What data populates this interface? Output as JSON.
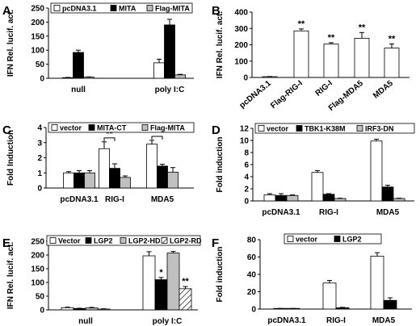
{
  "chart_data": [
    {
      "panel": "A",
      "type": "bar",
      "ylabel": "IFN Rel. lucif. act.",
      "ylim": [
        0,
        250
      ],
      "yticks": [
        0,
        50,
        100,
        150,
        200,
        250
      ],
      "categories": [
        "null",
        "poly I:C"
      ],
      "series": [
        {
          "name": "pcDNA3.1",
          "fill": "#ffffff",
          "values": [
            2,
            55
          ],
          "errors": [
            1,
            13
          ]
        },
        {
          "name": "MITA",
          "fill": "#000000",
          "values": [
            92,
            190
          ],
          "errors": [
            8,
            20
          ]
        },
        {
          "name": "Flag-MITA",
          "fill": "#c0c0c0",
          "values": [
            4,
            12
          ],
          "errors": [
            1,
            2
          ]
        }
      ],
      "annotations": []
    },
    {
      "panel": "B",
      "type": "bar",
      "ylabel": "IFN Rel. lucif. act.",
      "ylim": [
        0,
        400
      ],
      "yticks": [
        0,
        100,
        200,
        300,
        400
      ],
      "categories": [
        "pcDNA3.1",
        "Flag-RIG-I",
        "RIG-I",
        "Flag-MDA5",
        "MDA5"
      ],
      "series": [
        {
          "name": "",
          "fill": "#ffffff",
          "values": [
            5,
            285,
            205,
            240,
            180
          ],
          "errors": [
            1,
            12,
            8,
            35,
            25
          ]
        }
      ],
      "annotations": [
        {
          "category": 1,
          "text": "**"
        },
        {
          "category": 2,
          "text": "**"
        },
        {
          "category": 3,
          "text": "**"
        },
        {
          "category": 4,
          "text": "**"
        }
      ]
    },
    {
      "panel": "C",
      "type": "bar",
      "ylabel": "Fold Induction",
      "ylim": [
        0,
        4
      ],
      "yticks": [
        0,
        1,
        2,
        3,
        4
      ],
      "categories": [
        "pcDNA3.1",
        "RIG-I",
        "MDA5"
      ],
      "series": [
        {
          "name": "vector",
          "fill": "#ffffff",
          "values": [
            1.0,
            2.6,
            2.9
          ],
          "errors": [
            0.08,
            0.45,
            0.25
          ]
        },
        {
          "name": "MITA-CT",
          "fill": "#000000",
          "values": [
            1.0,
            1.3,
            1.45
          ],
          "errors": [
            0.15,
            0.3,
            0.12
          ]
        },
        {
          "name": "Flag-MITA",
          "fill": "#c0c0c0",
          "values": [
            1.0,
            0.7,
            1.05
          ],
          "errors": [
            0.15,
            0.1,
            0.3
          ]
        }
      ],
      "annotations": [
        {
          "category": 1,
          "text": "**",
          "bracket": true
        },
        {
          "category": 2,
          "text": "**",
          "bracket": true
        }
      ]
    },
    {
      "panel": "D",
      "type": "bar",
      "ylabel": "Fold induction",
      "ylim": [
        0,
        12
      ],
      "yticks": [
        0,
        2,
        4,
        6,
        8,
        10,
        12
      ],
      "categories": [
        "pcDNA3.1",
        "RIG-I",
        "MDA5"
      ],
      "series": [
        {
          "name": "vector",
          "fill": "#ffffff",
          "values": [
            1.0,
            4.7,
            9.9
          ],
          "errors": [
            0.2,
            0.3,
            0.3
          ]
        },
        {
          "name": "TBK1-K38M",
          "fill": "#000000",
          "values": [
            0.9,
            1.1,
            2.3
          ],
          "errors": [
            0.3,
            0.1,
            0.3
          ]
        },
        {
          "name": "IRF3-DN",
          "fill": "#c0c0c0",
          "values": [
            0.9,
            0.4,
            0.4
          ],
          "errors": [
            0.1,
            0.05,
            0.05
          ]
        }
      ],
      "annotations": []
    },
    {
      "panel": "E",
      "type": "bar",
      "ylabel": "IFN Rel. lucif. act.",
      "ylim": [
        0,
        250
      ],
      "yticks": [
        0,
        50,
        100,
        150,
        200,
        250
      ],
      "categories": [
        "null",
        "poly I:C"
      ],
      "series": [
        {
          "name": "Vector",
          "fill": "#ffffff",
          "values": [
            8,
            197
          ],
          "errors": [
            2,
            15
          ]
        },
        {
          "name": "LGP2",
          "fill": "#000000",
          "values": [
            5,
            110
          ],
          "errors": [
            1,
            8
          ]
        },
        {
          "name": "LGP2-HD",
          "fill": "#c0c0c0",
          "values": [
            7,
            207
          ],
          "errors": [
            2,
            6
          ]
        },
        {
          "name": "LGP2-RD",
          "fill": "hatch",
          "values": [
            3,
            77
          ],
          "errors": [
            1,
            8
          ]
        }
      ],
      "annotations": [
        {
          "category": 1,
          "series": 1,
          "text": "*"
        },
        {
          "category": 1,
          "series": 3,
          "text": "**"
        }
      ]
    },
    {
      "panel": "F",
      "type": "bar",
      "ylabel": "Fold induction",
      "ylim": [
        0,
        80
      ],
      "yticks": [
        0,
        20,
        40,
        60,
        80
      ],
      "categories": [
        "pcDNA3.1",
        "RIG-I",
        "MDA5"
      ],
      "series": [
        {
          "name": "vector",
          "fill": "#ffffff",
          "values": [
            0.5,
            30,
            61
          ],
          "errors": [
            0.2,
            3,
            4
          ]
        },
        {
          "name": "LGP2",
          "fill": "#000000",
          "values": [
            0.5,
            1.5,
            10
          ],
          "errors": [
            0.2,
            0.5,
            3
          ]
        }
      ],
      "annotations": []
    }
  ]
}
